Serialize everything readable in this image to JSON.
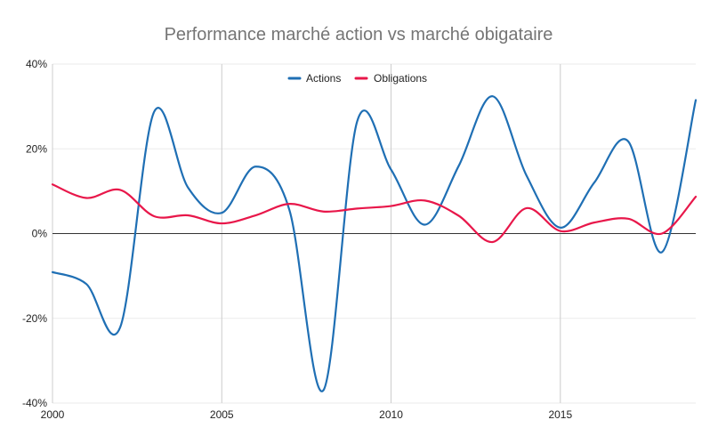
{
  "chart_data": {
    "type": "line",
    "title": "Performance marché action vs marché obigataire",
    "xlabel": "",
    "ylabel": "",
    "xlim": [
      2000,
      2019
    ],
    "ylim": [
      -40,
      40
    ],
    "x_ticks": [
      2000,
      2005,
      2010,
      2015
    ],
    "x_tick_labels": [
      "2000",
      "2005",
      "2010",
      "2015"
    ],
    "y_ticks": [
      -40,
      -20,
      0,
      20,
      40
    ],
    "y_tick_labels": [
      "-40%",
      "-20%",
      "0%",
      "20%",
      "40%"
    ],
    "legend_position": "top-center",
    "smooth": true,
    "x": [
      2000,
      2001,
      2002,
      2003,
      2004,
      2005,
      2006,
      2007,
      2008,
      2009,
      2010,
      2011,
      2012,
      2013,
      2014,
      2015,
      2016,
      2017,
      2018,
      2019
    ],
    "series": [
      {
        "name": "Actions",
        "color": "#1f6fb4",
        "values": [
          -9.1,
          -11.9,
          -22.1,
          28.7,
          10.9,
          4.9,
          15.8,
          5.5,
          -37.0,
          26.5,
          15.1,
          2.1,
          16.0,
          32.4,
          13.7,
          1.4,
          12.0,
          21.8,
          -4.4,
          31.5
        ]
      },
      {
        "name": "Obligations",
        "color": "#e8174a",
        "values": [
          11.6,
          8.4,
          10.3,
          4.1,
          4.3,
          2.4,
          4.3,
          7.0,
          5.2,
          5.9,
          6.5,
          7.8,
          4.2,
          -2.0,
          6.0,
          0.6,
          2.6,
          3.5,
          0.0,
          8.7
        ]
      }
    ]
  }
}
